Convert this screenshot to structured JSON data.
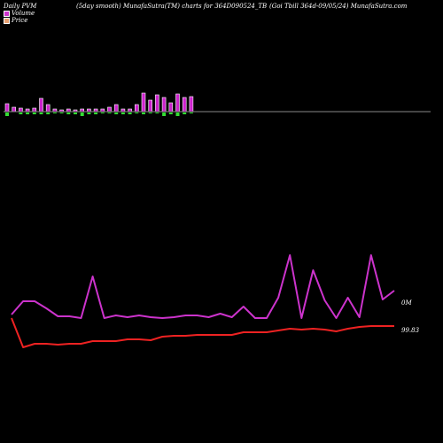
{
  "header": {
    "left": "Daily PVM",
    "middle": "(5day smooth) MunafaSutra(TM) charts for 364D090524_TB",
    "right": "(Goi  Tbill 364d-09/05/24) MunafaSutra.com"
  },
  "legend": [
    {
      "label": "Volume",
      "color": "#cc33cc"
    },
    {
      "label": "Price",
      "color": "#e8a070"
    }
  ],
  "chart_data": {
    "type": "line",
    "axis_labels": {
      "volume": "0M",
      "price": "99.83"
    },
    "colors": {
      "volume_up": "#cc22cc",
      "volume_down": "#33dd33",
      "pvm_line": "#cc33cc",
      "price_line": "#ee2222",
      "baseline": "#888888"
    },
    "volume_bars": [
      {
        "value": 9,
        "color": "up",
        "neg": 4
      },
      {
        "value": 5,
        "color": "up",
        "neg": 0
      },
      {
        "value": 4,
        "color": "up",
        "neg": 2
      },
      {
        "value": 3,
        "color": "up",
        "neg": 2
      },
      {
        "value": 4,
        "color": "up",
        "neg": 2
      },
      {
        "value": 15,
        "color": "up",
        "neg": 2
      },
      {
        "value": 8,
        "color": "up",
        "neg": 2
      },
      {
        "value": 3,
        "color": "up",
        "neg": 1
      },
      {
        "value": 2,
        "color": "up",
        "neg": 1
      },
      {
        "value": 3,
        "color": "up",
        "neg": 2
      },
      {
        "value": 2,
        "color": "up",
        "neg": 2
      },
      {
        "value": 3,
        "color": "up",
        "neg": 4
      },
      {
        "value": 3,
        "color": "up",
        "neg": 2
      },
      {
        "value": 3,
        "color": "up",
        "neg": 2
      },
      {
        "value": 3,
        "color": "up",
        "neg": 1
      },
      {
        "value": 5,
        "color": "up",
        "neg": 1
      },
      {
        "value": 8,
        "color": "up",
        "neg": 2
      },
      {
        "value": 3,
        "color": "up",
        "neg": 2
      },
      {
        "value": 3,
        "color": "up",
        "neg": 2
      },
      {
        "value": 8,
        "color": "up",
        "neg": 1
      },
      {
        "value": 21,
        "color": "up",
        "neg": 2
      },
      {
        "value": 13,
        "color": "up",
        "neg": 1
      },
      {
        "value": 19,
        "color": "up",
        "neg": 1
      },
      {
        "value": 16,
        "color": "up",
        "neg": 4
      },
      {
        "value": 10,
        "color": "up",
        "neg": 2
      },
      {
        "value": 20,
        "color": "up",
        "neg": 4
      },
      {
        "value": 16,
        "color": "up",
        "neg": 2
      },
      {
        "value": 17,
        "color": "up",
        "neg": 1
      }
    ],
    "pvm_series": [
      85,
      100,
      100,
      92,
      83,
      83,
      81,
      128,
      81,
      84,
      82,
      84,
      82,
      81,
      82,
      84,
      84,
      82,
      86,
      82,
      94,
      81,
      81,
      104,
      152,
      81,
      135,
      101,
      81,
      104,
      82,
      152,
      102,
      112
    ],
    "price_series": [
      81,
      48,
      52,
      52,
      51,
      52,
      52,
      55,
      55,
      55,
      57,
      57,
      56,
      60,
      61,
      61,
      62,
      62,
      62,
      62,
      65,
      65,
      65,
      67,
      69,
      68,
      69,
      68,
      66,
      69,
      71,
      72,
      72,
      72
    ]
  }
}
